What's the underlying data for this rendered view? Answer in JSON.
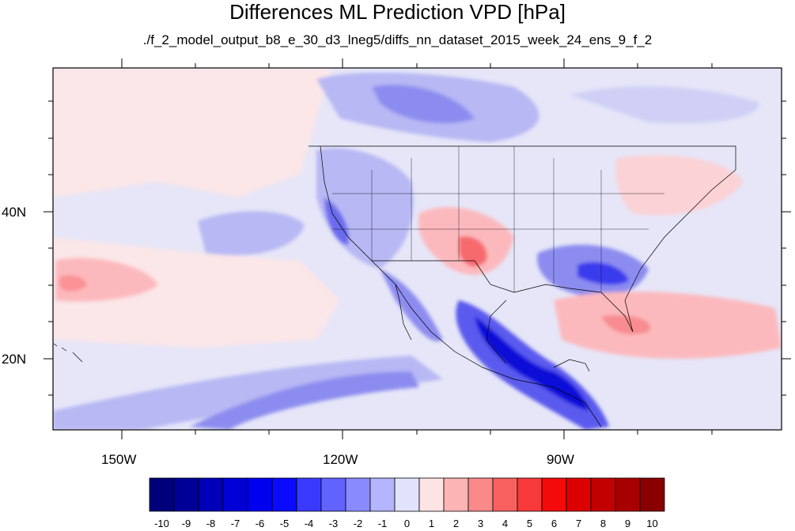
{
  "title": "Differences ML Prediction VPD [hPa]",
  "subtitle": "./f_2_model_output_b8_e_30_d3_lneg5/diffs_nn_dataset_2015_week_24_ens_9_f_2",
  "axes": {
    "lat_labels": [
      "40N",
      "20N"
    ],
    "lon_labels": [
      "150W",
      "120W",
      "90W"
    ]
  },
  "colorbar": {
    "labels": [
      "-10",
      "-9",
      "-8",
      "-7",
      "-6",
      "-5",
      "-4",
      "-3",
      "-2",
      "-1",
      "0",
      "1",
      "2",
      "3",
      "4",
      "5",
      "6",
      "7",
      "8",
      "9",
      "10"
    ],
    "colors": [
      "#00007a",
      "#000099",
      "#0000b8",
      "#0000d6",
      "#0000f0",
      "#0a0aff",
      "#3a3aff",
      "#6262ff",
      "#8a8aff",
      "#b4b4ff",
      "#e2e2fa",
      "#fde4e4",
      "#fcb4b4",
      "#fa8a8a",
      "#f86060",
      "#f63a3a",
      "#f40a0a",
      "#dd0000",
      "#c20000",
      "#a80000",
      "#880000"
    ]
  }
}
